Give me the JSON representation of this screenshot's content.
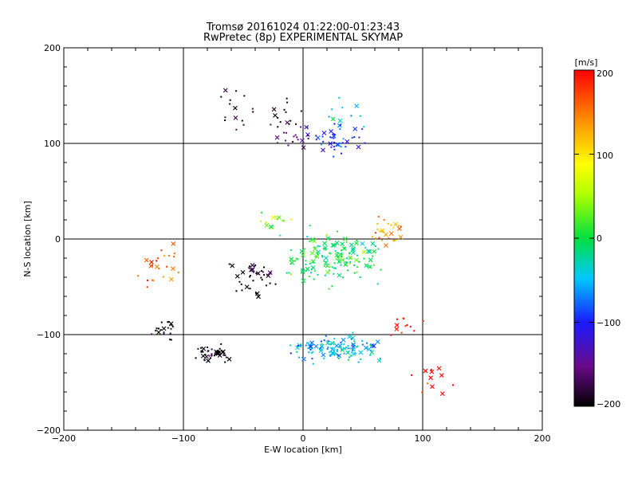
{
  "chart_data": {
    "type": "scatter",
    "title": "Tromsø 20161024 01:22:00-01:23:43",
    "subtitle": "RwPretec (8p) EXPERIMENTAL SKYMAP",
    "xlabel": "E-W location [km]",
    "ylabel": "N-S location [km]",
    "xlim": [
      -200,
      200
    ],
    "ylim": [
      -200,
      200
    ],
    "xticks": [
      "−200",
      "−100",
      "0",
      "100",
      "200"
    ],
    "yticks": [
      "−200",
      "−100",
      "0",
      "100",
      "200"
    ],
    "grid": true,
    "colorbar": {
      "label": "[m/s]",
      "range": [
        -200,
        200
      ],
      "ticks": [
        "200",
        "100",
        "0",
        "−100",
        "−200"
      ],
      "colormap": "rainbow (black-purple-blue-cyan-green-yellow-orange-red)"
    },
    "clusters": [
      {
        "cx": -75,
        "cy": -120,
        "sx": 10,
        "sy": 7,
        "n": 45,
        "v": -200
      },
      {
        "cx": -115,
        "cy": -95,
        "sx": 7,
        "sy": 7,
        "n": 20,
        "v": -200
      },
      {
        "cx": -40,
        "cy": -40,
        "sx": 12,
        "sy": 12,
        "n": 40,
        "v": -200
      },
      {
        "cx": -55,
        "cy": 135,
        "sx": 18,
        "sy": 18,
        "n": 15,
        "v": -200
      },
      {
        "cx": -15,
        "cy": 130,
        "sx": 12,
        "sy": 12,
        "n": 15,
        "v": -200
      },
      {
        "cx": -5,
        "cy": 108,
        "sx": 12,
        "sy": 8,
        "n": 20,
        "v": -150
      },
      {
        "cx": 30,
        "cy": 105,
        "sx": 15,
        "sy": 10,
        "n": 40,
        "v": -100
      },
      {
        "cx": 35,
        "cy": 130,
        "sx": 15,
        "sy": 10,
        "n": 10,
        "v": -50
      },
      {
        "cx": 25,
        "cy": -20,
        "sx": 25,
        "sy": 18,
        "n": 150,
        "v": 0
      },
      {
        "cx": 30,
        "cy": -115,
        "sx": 25,
        "sy": 10,
        "n": 120,
        "v": -50
      },
      {
        "cx": -120,
        "cy": -25,
        "sx": 10,
        "sy": 15,
        "n": 25,
        "v": 170
      },
      {
        "cx": 70,
        "cy": 10,
        "sx": 12,
        "sy": 10,
        "n": 30,
        "v": 140
      },
      {
        "cx": 85,
        "cy": -90,
        "sx": 12,
        "sy": 10,
        "n": 12,
        "v": 200
      },
      {
        "cx": 110,
        "cy": -150,
        "sx": 10,
        "sy": 15,
        "n": 12,
        "v": 200
      },
      {
        "cx": -25,
        "cy": 20,
        "sx": 12,
        "sy": 8,
        "n": 15,
        "v": 40
      }
    ]
  }
}
